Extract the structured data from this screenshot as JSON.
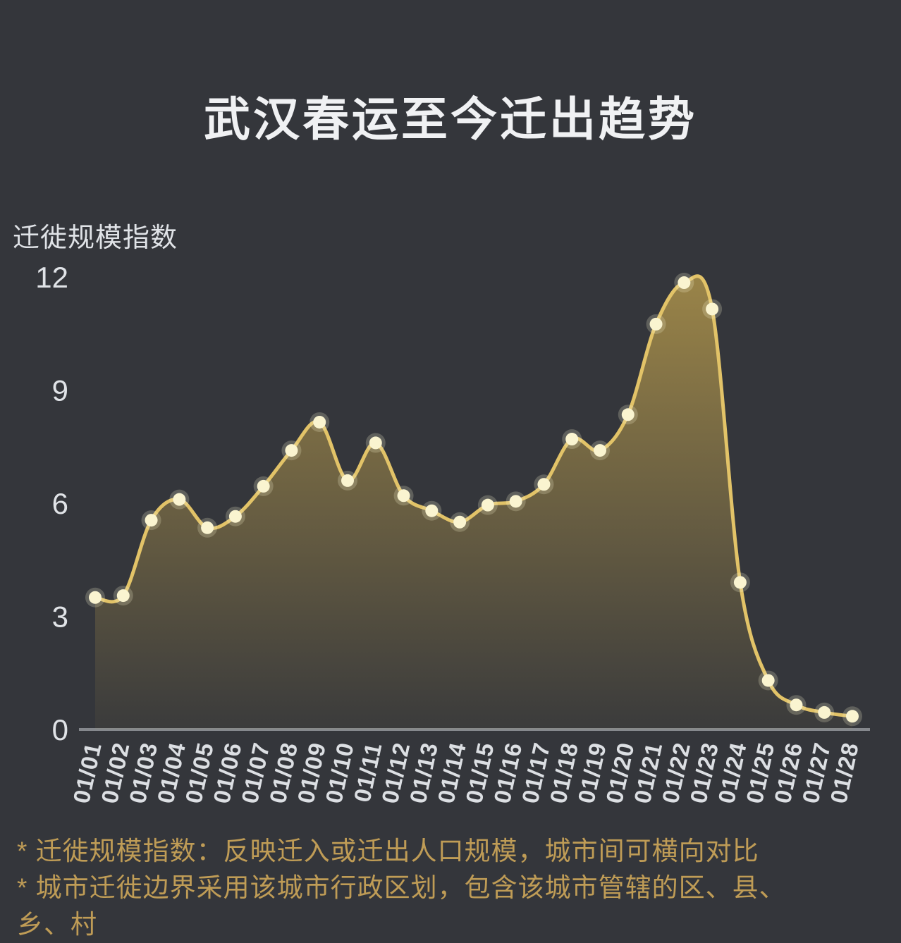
{
  "title": "武汉春运至今迁出趋势",
  "colors": {
    "background": "#34363b",
    "title_text": "#f0f1f3",
    "axis_text": "#e0e3e7",
    "x_label_text": "#dcdfe3",
    "line": "#e2c368",
    "dot_fill": "#faf4d0",
    "area_top": "#d6b250",
    "baseline": "#85888d",
    "footnote_text": "#bf9c56"
  },
  "chart_data": {
    "type": "line",
    "title": "武汉春运至今迁出趋势",
    "xlabel": "",
    "ylabel": "迁徙规模指数",
    "ylim": [
      0,
      12
    ],
    "y_ticks": [
      0,
      3,
      6,
      9,
      12
    ],
    "grid": false,
    "legend_position": "none",
    "smooth": true,
    "area": true,
    "show_points": true,
    "categories": [
      "01/01",
      "01/02",
      "01/03",
      "01/04",
      "01/05",
      "01/06",
      "01/07",
      "01/08",
      "01/09",
      "01/10",
      "01/11",
      "01/12",
      "01/13",
      "01/14",
      "01/15",
      "01/16",
      "01/17",
      "01/18",
      "01/19",
      "01/20",
      "01/21",
      "01/22",
      "01/23",
      "01/24",
      "01/25",
      "01/26",
      "01/27",
      "01/28"
    ],
    "values": [
      3.5,
      3.55,
      5.55,
      6.1,
      5.35,
      5.65,
      6.45,
      7.4,
      8.15,
      6.6,
      7.6,
      6.2,
      5.8,
      5.5,
      5.95,
      6.05,
      6.5,
      7.7,
      7.4,
      8.35,
      10.75,
      11.85,
      11.15,
      3.9,
      1.3,
      0.65,
      0.45,
      0.35
    ]
  },
  "footnotes": {
    "lines": [
      "* 迁徙规模指数：反映迁入或迁出人口规模，城市间可横向对比",
      "* 城市迁徙边界采用该城市行政区划，包含该城市管辖的区、县、",
      "乡、村"
    ]
  }
}
